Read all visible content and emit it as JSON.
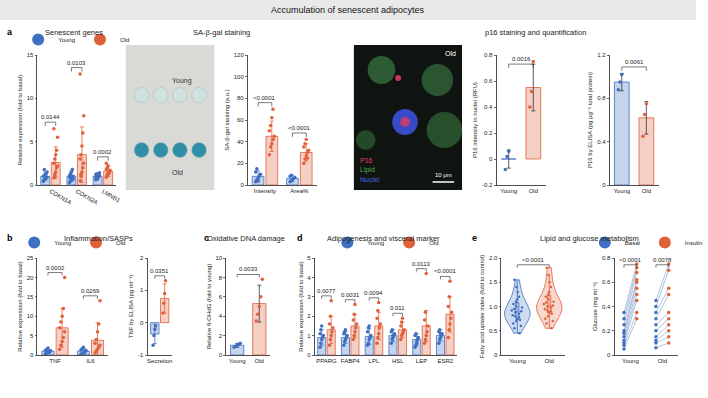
{
  "title": "Accumulation of senescent adipocytes",
  "headings": [
    {
      "letter": "a",
      "text": "Senescent genes"
    },
    {
      "text": "SA-β-gal staining"
    },
    {
      "text": "p16 staining and quantification"
    },
    {
      "letter": "b",
      "text": "Inflammation/SASPs"
    },
    {
      "letter": "c",
      "text": "Oxidative DNA damage"
    },
    {
      "letter": "d",
      "text": "Adipogenesis and visceral marker"
    },
    {
      "letter": "e",
      "text": "Lipid and glucose metabolism"
    }
  ],
  "images": {
    "sa_gal": {
      "labels": [
        "Young",
        "Old"
      ]
    },
    "p16": {
      "label": "Old",
      "channels": [
        {
          "text": "P16",
          "color": "#e0405a"
        },
        {
          "text": "Lipid",
          "color": "#4caf50"
        },
        {
          "text": "Nuclei",
          "color": "#4a66e8"
        }
      ],
      "scale_bar": "10 μm"
    }
  },
  "chart_data": [
    {
      "type": "bar",
      "categories": [
        "CDKN1A",
        "CDKN2A",
        "LMNB1"
      ],
      "ylabel": "Relative expression (fold to basal)",
      "ylim": [
        0,
        15
      ],
      "yticks": [
        0,
        5,
        10,
        15
      ],
      "legend": "top",
      "annotations": [
        "0.0144",
        "0.0103",
        "0.0002"
      ],
      "series": [
        {
          "name": "Young",
          "color": "#3f6fc0",
          "values": [
            1.0,
            1.0,
            1.0
          ],
          "errors": [
            0.5,
            0.6,
            0.3
          ],
          "points": [
            [
              0.4,
              0.6,
              0.7,
              0.8,
              0.9,
              1.0,
              1.1,
              1.2,
              1.3,
              1.5,
              0.5,
              1.8
            ],
            [
              0.3,
              0.5,
              0.6,
              0.8,
              1.0,
              1.1,
              1.3,
              1.5,
              1.8,
              0.7,
              0.9,
              1.2
            ],
            [
              0.6,
              0.8,
              0.9,
              1.0,
              1.1,
              1.2,
              1.3,
              0.7,
              1.0,
              1.4,
              0.9,
              1.1
            ]
          ]
        },
        {
          "name": "Old",
          "color": "#e0603a",
          "values": [
            2.6,
            3.5,
            1.6
          ],
          "errors": [
            1.8,
            3.2,
            0.6
          ],
          "points": [
            [
              0.8,
              1.2,
              1.5,
              2.0,
              2.2,
              2.5,
              3.0,
              3.5,
              4.0,
              5.5,
              6.5,
              1.0
            ],
            [
              0.5,
              1.0,
              1.5,
              2.0,
              2.5,
              3.0,
              3.5,
              4.5,
              6.0,
              8.0,
              12.8,
              1.2
            ],
            [
              0.9,
              1.2,
              1.4,
              1.5,
              1.6,
              1.8,
              2.0,
              2.2,
              1.3,
              1.7,
              2.5,
              1.1
            ]
          ]
        }
      ]
    },
    {
      "type": "bar",
      "categories": [
        "Intensity",
        "Area%"
      ],
      "ylabel": "SA-β-gal staining (a.u.)",
      "ylim": [
        0,
        120
      ],
      "yticks": [
        0,
        20,
        40,
        60,
        80,
        100,
        120
      ],
      "annotations": [
        "<0.0001",
        "<0.0001"
      ],
      "series": [
        {
          "name": "Young",
          "color": "#3f6fc0",
          "values": [
            8,
            6
          ],
          "errors": [
            5,
            3
          ],
          "points": [
            [
              3,
              5,
              6,
              8,
              10,
              12,
              15,
              4
            ],
            [
              3,
              4,
              5,
              6,
              7,
              8,
              9,
              5
            ]
          ]
        },
        {
          "name": "Old",
          "color": "#e0603a",
          "values": [
            45,
            30
          ],
          "errors": [
            14,
            8
          ],
          "points": [
            [
              28,
              35,
              38,
              42,
              45,
              50,
              55,
              62,
              70
            ],
            [
              20,
              24,
              27,
              30,
              32,
              35,
              38,
              42,
              25
            ]
          ]
        }
      ]
    },
    {
      "type": "bar",
      "categories": [
        "Young",
        "Old"
      ],
      "ylabel": "P16 intensity in nuclei (RFU)",
      "ylim": [
        -0.2,
        0.8
      ],
      "yticks": [
        -0.2,
        0,
        0.2,
        0.4,
        0.6,
        0.8
      ],
      "annotations": [
        "0.0016"
      ],
      "colors": [
        "#3f6fc0",
        "#e0603a"
      ],
      "values": [
        0.0,
        0.55
      ],
      "errors": [
        0.07,
        0.18
      ],
      "points": [
        [
          -0.08,
          0.02,
          0.06
        ],
        [
          0.4,
          0.52,
          0.75
        ]
      ]
    },
    {
      "type": "bar",
      "categories": [
        "Young",
        "Old"
      ],
      "ylabel": "P16 by ELISA (pg μg⁻¹ total protein)",
      "ylim": [
        0,
        1.2
      ],
      "yticks": [
        0,
        0.4,
        0.8,
        1.2
      ],
      "annotations": [
        "0.0061"
      ],
      "colors": [
        "#3f6fc0",
        "#e0603a"
      ],
      "values": [
        0.95,
        0.62
      ],
      "errors": [
        0.08,
        0.15
      ],
      "points": [
        [
          0.88,
          0.95,
          1.02
        ],
        [
          0.45,
          0.65,
          0.75
        ]
      ]
    },
    {
      "type": "bar",
      "categories": [
        "TNF",
        "IL6"
      ],
      "ylabel": "Relative expression (fold to basal)",
      "ylim": [
        0,
        25
      ],
      "yticks": [
        0,
        5,
        10,
        15,
        20,
        25
      ],
      "legend": "top",
      "annotations": [
        "0.0002",
        "0.0269"
      ],
      "series": [
        {
          "name": "Young",
          "color": "#3f6fc0",
          "values": [
            1.0,
            1.0
          ],
          "errors": [
            0.5,
            0.6
          ],
          "points": [
            [
              0.3,
              0.5,
              0.7,
              0.9,
              1.0,
              1.2,
              1.4,
              1.8,
              0.6,
              1.1
            ],
            [
              0.2,
              0.4,
              0.6,
              0.8,
              1.0,
              1.3,
              1.6,
              2.0,
              0.5,
              1.2
            ]
          ]
        },
        {
          "name": "Old",
          "color": "#e0603a",
          "values": [
            7.0,
            3.8
          ],
          "errors": [
            5.0,
            4.5
          ],
          "points": [
            [
              1.5,
              2.5,
              3.5,
              4.5,
              6,
              7,
              8.5,
              10,
              12,
              20
            ],
            [
              0.5,
              1,
              1.5,
              2,
              2.5,
              3,
              4,
              6,
              8,
              14
            ]
          ]
        }
      ]
    },
    {
      "type": "bar",
      "categories": [
        "Secretion"
      ],
      "ylabel": "TNF by ELISA (pg ml⁻¹)",
      "ylim": [
        -1,
        2
      ],
      "yticks": [
        -1,
        0,
        1,
        2
      ],
      "annotations": [
        "0.0351"
      ],
      "series": [
        {
          "name": "Young",
          "color": "#3f6fc0",
          "values": [
            -0.35
          ],
          "errors": [
            0.3
          ],
          "points": [
            [
              -0.7,
              -0.4,
              -0.2,
              -0.1
            ]
          ]
        },
        {
          "name": "Old",
          "color": "#e0603a",
          "values": [
            0.75
          ],
          "errors": [
            0.45
          ],
          "points": [
            [
              0.3,
              0.6,
              0.9,
              1.3
            ]
          ]
        }
      ]
    },
    {
      "type": "bar",
      "categories": [
        "Young",
        "Old"
      ],
      "ylabel": "Relative 8-OHdG (fold to young)",
      "ylim": [
        0,
        10
      ],
      "yticks": [
        0,
        2,
        4,
        6,
        8,
        10
      ],
      "annotations": [
        "0.0033"
      ],
      "colors": [
        "#3f6fc0",
        "#e0603a"
      ],
      "values": [
        1.0,
        5.3
      ],
      "errors": [
        0.2,
        1.9
      ],
      "points": [
        [
          0.8,
          0.9,
          1.0,
          1.1,
          1.2
        ],
        [
          3.5,
          4.2,
          5.0,
          6.0,
          7.8
        ]
      ]
    },
    {
      "type": "bar",
      "categories": [
        "PPARG",
        "FABP4",
        "LPL",
        "HSL",
        "LEP",
        "ESR2"
      ],
      "ylabel": "Relative expression (fold to basal)",
      "ylim": [
        0,
        5
      ],
      "yticks": [
        0,
        1,
        2,
        3,
        4,
        5
      ],
      "legend": "top",
      "annotations": [
        "0.0077",
        "0.0031",
        "0.0094",
        "0.011",
        "0.0113",
        "<0.0001"
      ],
      "series": [
        {
          "name": "Young",
          "color": "#3f6fc0",
          "values": [
            0.9,
            0.9,
            0.95,
            1.0,
            0.8,
            1.0
          ],
          "errors": [
            0.4,
            0.3,
            0.4,
            0.3,
            0.3,
            0.3
          ],
          "points": [
            [
              0.4,
              0.6,
              0.8,
              0.9,
              1.0,
              1.1,
              1.3,
              1.5
            ],
            [
              0.5,
              0.7,
              0.8,
              0.9,
              1.0,
              1.1,
              1.2,
              1.3
            ],
            [
              0.5,
              0.6,
              0.8,
              0.9,
              1.0,
              1.2,
              1.4,
              1.5
            ],
            [
              0.6,
              0.8,
              0.9,
              1.0,
              1.1,
              1.2,
              1.3,
              1.0
            ],
            [
              0.4,
              0.5,
              0.7,
              0.8,
              0.9,
              1.0,
              1.1,
              0.6
            ],
            [
              0.6,
              0.8,
              0.9,
              1.0,
              1.1,
              1.2,
              1.3,
              1.1
            ]
          ]
        },
        {
          "name": "Old",
          "color": "#e0603a",
          "values": [
            1.3,
            1.5,
            1.5,
            1.3,
            1.5,
            2.1
          ],
          "errors": [
            0.7,
            0.6,
            0.7,
            0.4,
            0.8,
            0.9
          ],
          "points": [
            [
              0.5,
              0.8,
              1.0,
              1.2,
              1.4,
              1.6,
              2.0,
              2.8
            ],
            [
              0.8,
              1.0,
              1.2,
              1.4,
              1.6,
              1.8,
              2.1,
              2.6
            ],
            [
              0.6,
              0.9,
              1.1,
              1.4,
              1.6,
              1.9,
              2.3,
              2.7
            ],
            [
              0.8,
              1.0,
              1.1,
              1.2,
              1.3,
              1.5,
              1.7,
              1.9
            ],
            [
              0.6,
              0.8,
              1.0,
              1.2,
              1.5,
              1.8,
              2.2,
              4.2
            ],
            [
              0.9,
              1.3,
              1.6,
              1.9,
              2.2,
              2.5,
              3.0,
              3.8
            ]
          ]
        }
      ]
    },
    {
      "type": "violin",
      "categories": [
        "Young",
        "Old"
      ],
      "ylabel": "Fatty acid uptake index (fold to control)",
      "ylim": [
        0,
        2
      ],
      "yticks": [
        0,
        0.5,
        {
          "value": 1,
          "label": "1.0"
        },
        1.5,
        {
          "value": 2,
          "label": "2.0"
        }
      ],
      "annotations": [
        "<0.0001"
      ],
      "colors": [
        "#3f6fc0",
        "#e0603a"
      ],
      "points": [
        [
          0.45,
          0.55,
          0.6,
          0.65,
          0.7,
          0.72,
          0.75,
          0.78,
          0.8,
          0.82,
          0.85,
          0.88,
          0.9,
          0.92,
          0.95,
          0.98,
          1.0,
          1.05,
          1.1,
          1.15,
          1.2,
          1.3,
          1.4,
          1.55
        ],
        [
          0.55,
          0.65,
          0.7,
          0.75,
          0.8,
          0.85,
          0.88,
          0.9,
          0.92,
          0.95,
          0.98,
          1.0,
          1.02,
          1.05,
          1.08,
          1.1,
          1.15,
          1.2,
          1.25,
          1.3,
          1.4,
          1.5,
          1.65,
          1.8
        ]
      ]
    },
    {
      "type": "line",
      "categories": [
        "Young",
        "Old"
      ],
      "ylabel": "Glucose (mg ml⁻¹)",
      "ylim": [
        0,
        0.8
      ],
      "yticks": [
        0,
        0.2,
        0.4,
        0.6,
        0.8
      ],
      "legend": "top",
      "annotations": [
        "<0.0001",
        "0.0078"
      ],
      "series": [
        {
          "name": "Basal",
          "color": "#3f6fc0",
          "values": [
            [
              0.05,
              0.08,
              0.1,
              0.12,
              0.15,
              0.18,
              0.2,
              0.25,
              0.3,
              0.35
            ],
            [
              0.06,
              0.1,
              0.12,
              0.15,
              0.2,
              0.25,
              0.3,
              0.35,
              0.4,
              0.45
            ]
          ]
        },
        {
          "name": "Insulin",
          "color": "#e0603a",
          "values": [
            [
              0.3,
              0.35,
              0.45,
              0.5,
              0.55,
              0.6,
              0.62,
              0.68,
              0.72,
              0.75
            ],
            [
              0.1,
              0.15,
              0.2,
              0.25,
              0.3,
              0.35,
              0.5,
              0.55,
              0.7,
              0.75
            ]
          ]
        }
      ]
    }
  ]
}
